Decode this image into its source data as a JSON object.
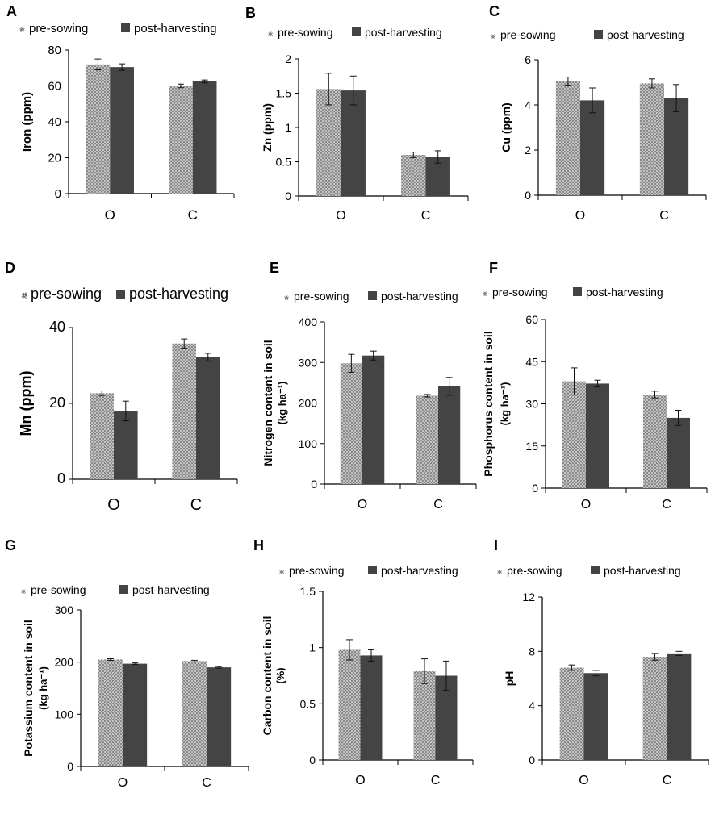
{
  "colors": {
    "pre_fill": "#d4d4d4",
    "pre_hatch": "#7a7a7a",
    "post_fill": "#444444",
    "post_fill_light": "#4f4f4f",
    "axis": "#000000"
  },
  "chart_data": [
    {
      "panel": "A",
      "type": "bar",
      "categories": [
        "O",
        "C"
      ],
      "series": [
        {
          "name": "pre-sowing",
          "values": [
            72,
            60
          ],
          "errors": [
            3,
            1
          ]
        },
        {
          "name": "post-harvesting",
          "values": [
            70.5,
            62.5
          ],
          "errors": [
            1.8,
            0.8
          ]
        }
      ],
      "ylabel": "Iron (ppm)",
      "ylim": [
        0,
        80
      ],
      "yticks": [
        "0",
        "20",
        "40",
        "60",
        "80"
      ]
    },
    {
      "panel": "B",
      "type": "bar",
      "categories": [
        "O",
        "C"
      ],
      "series": [
        {
          "name": "pre-sowing",
          "values": [
            1.56,
            0.6
          ],
          "errors": [
            0.23,
            0.04
          ]
        },
        {
          "name": "post-harvesting",
          "values": [
            1.54,
            0.57
          ],
          "errors": [
            0.21,
            0.09
          ]
        }
      ],
      "ylabel": "Zn (ppm)",
      "ylim": [
        0,
        2
      ],
      "yticks": [
        "0",
        "0.5",
        "1",
        "1.5",
        "2"
      ]
    },
    {
      "panel": "C",
      "type": "bar",
      "categories": [
        "O",
        "C"
      ],
      "series": [
        {
          "name": "pre-sowing",
          "values": [
            5.05,
            4.95
          ],
          "errors": [
            0.18,
            0.2
          ]
        },
        {
          "name": "post-harvesting",
          "values": [
            4.2,
            4.3
          ],
          "errors": [
            0.55,
            0.6
          ]
        }
      ],
      "ylabel": "Cu (ppm)",
      "ylim": [
        0,
        6
      ],
      "yticks": [
        "0",
        "2",
        "4",
        "6"
      ]
    },
    {
      "panel": "D",
      "type": "bar",
      "categories": [
        "O",
        "C"
      ],
      "series": [
        {
          "name": "pre-sowing",
          "values": [
            22.7,
            35.8
          ],
          "errors": [
            0.6,
            1.2
          ]
        },
        {
          "name": "post-harvesting",
          "values": [
            18,
            32.2
          ],
          "errors": [
            2.6,
            1
          ]
        }
      ],
      "ylabel": "Mn (ppm)",
      "ylim": [
        0,
        40
      ],
      "yticks": [
        "0",
        "20",
        "40"
      ]
    },
    {
      "panel": "E",
      "type": "bar",
      "categories": [
        "O",
        "C"
      ],
      "series": [
        {
          "name": "pre-sowing",
          "values": [
            298,
            218
          ],
          "errors": [
            22,
            3
          ]
        },
        {
          "name": "post-harvesting",
          "values": [
            317,
            241
          ],
          "errors": [
            11,
            22
          ]
        }
      ],
      "ylabel": "Nitrogen content in soil",
      "ylabel2": "(kg ha⁻¹)",
      "ylim": [
        0,
        400
      ],
      "yticks": [
        "0",
        "100",
        "200",
        "300",
        "400"
      ]
    },
    {
      "panel": "F",
      "type": "bar",
      "categories": [
        "O",
        "C"
      ],
      "series": [
        {
          "name": "pre-sowing",
          "values": [
            38,
            33.3
          ],
          "errors": [
            4.8,
            1.2
          ]
        },
        {
          "name": "post-harvesting",
          "values": [
            37.2,
            25
          ],
          "errors": [
            1.2,
            2.7
          ]
        }
      ],
      "ylabel": "Phosphorus content in soil",
      "ylabel2": "(kg ha⁻¹)",
      "ylim": [
        0,
        60
      ],
      "yticks": [
        "0",
        "15",
        "30",
        "45",
        "60"
      ]
    },
    {
      "panel": "G",
      "type": "bar",
      "categories": [
        "O",
        "C"
      ],
      "series": [
        {
          "name": "pre-sowing",
          "values": [
            205,
            202
          ],
          "errors": [
            1.5,
            1.5
          ]
        },
        {
          "name": "post-harvesting",
          "values": [
            197,
            190
          ],
          "errors": [
            1.5,
            1.5
          ]
        }
      ],
      "ylabel": "Potassium content in soil",
      "ylabel2": "(kg ha⁻¹)",
      "ylim": [
        0,
        300
      ],
      "yticks": [
        "0",
        "100",
        "200",
        "300"
      ]
    },
    {
      "panel": "H",
      "type": "bar",
      "categories": [
        "O",
        "C"
      ],
      "series": [
        {
          "name": "pre-sowing",
          "values": [
            0.98,
            0.79
          ],
          "errors": [
            0.09,
            0.11
          ]
        },
        {
          "name": "post-harvesting",
          "values": [
            0.93,
            0.75
          ],
          "errors": [
            0.05,
            0.13
          ]
        }
      ],
      "ylabel": "Carbon content in soil",
      "ylabel2": "(%)",
      "ylim": [
        0,
        1.5
      ],
      "yticks": [
        "0",
        "0.5",
        "1",
        "1.5"
      ]
    },
    {
      "panel": "I",
      "type": "bar",
      "categories": [
        "O",
        "C"
      ],
      "series": [
        {
          "name": "pre-sowing",
          "values": [
            6.8,
            7.6
          ],
          "errors": [
            0.2,
            0.25
          ]
        },
        {
          "name": "post-harvesting",
          "values": [
            6.4,
            7.85
          ],
          "errors": [
            0.2,
            0.15
          ]
        }
      ],
      "ylabel": "pH",
      "ylim": [
        0,
        12
      ],
      "yticks": [
        "0",
        "4",
        "8",
        "12"
      ]
    }
  ]
}
